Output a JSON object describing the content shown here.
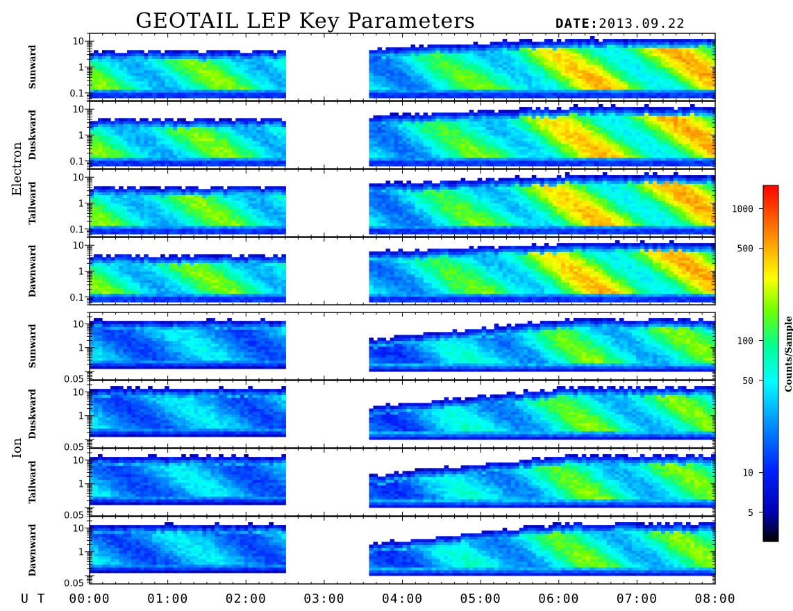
{
  "chart_data": {
    "type": "heatmap",
    "title": "GEOTAIL LEP Key Parameters",
    "date_label": "DATE:",
    "date_value": "2013.09.22",
    "xlabel": "U T",
    "x_ticks": [
      "00:00",
      "01:00",
      "02:00",
      "03:00",
      "04:00",
      "05:00",
      "06:00",
      "07:00",
      "08:00"
    ],
    "x_range_hours": [
      0,
      8
    ],
    "y_scale": "log",
    "data_gap_hours": [
      2.52,
      3.57
    ],
    "colorbar": {
      "label": "Counts/Sample",
      "scale": "log",
      "range": [
        3,
        1500
      ],
      "ticks": [
        "1000",
        "500",
        "100",
        "50",
        "10",
        "5"
      ],
      "tick_values": [
        1000,
        500,
        100,
        50,
        10,
        5
      ],
      "colors": [
        "#000000",
        "#0000c0",
        "#0000ff",
        "#0080ff",
        "#00ffff",
        "#00ff80",
        "#80ff00",
        "#ffff00",
        "#ff8000",
        "#ff0000"
      ]
    },
    "groups": [
      {
        "name": "Electron",
        "y_ticks": [
          "10",
          "1",
          "0.1"
        ],
        "y_tick_values": [
          10,
          1,
          0.1
        ],
        "y_range": [
          0.05,
          20
        ],
        "panels": [
          {
            "direction": "Sunward"
          },
          {
            "direction": "Duskward"
          },
          {
            "direction": "Tailward"
          },
          {
            "direction": "Dawnward"
          }
        ]
      },
      {
        "name": "Ion",
        "y_ticks": [
          "10",
          "1",
          "0.05"
        ],
        "y_tick_values": [
          10,
          1,
          0.05
        ],
        "y_range": [
          0.045,
          30
        ],
        "panels": [
          {
            "direction": "Sunward"
          },
          {
            "direction": "Duskward"
          },
          {
            "direction": "Tailward"
          },
          {
            "direction": "Dawnward"
          }
        ]
      }
    ]
  }
}
